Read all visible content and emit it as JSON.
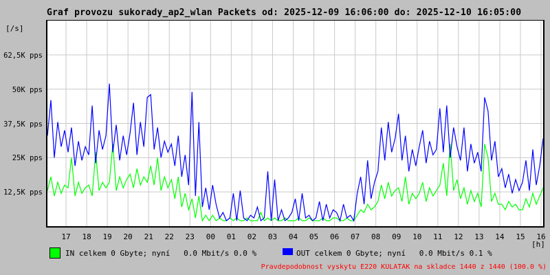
{
  "title": "Graf provozu sukorady_ap2_wlan Packets od: 2025-12-09 16:06:00 do: 2025-12-10 16:05:00",
  "y_axis_unit": "[/s]",
  "x_axis_unit": "[h]",
  "legend": {
    "in_label": "IN celkem 0 Gbyte; nyní   0.0 Mbit/s 0.0 %",
    "out_label": "OUT celkem 0 Gbyte; nyní   0.0 Mbit/s 0.1 %"
  },
  "alert_text": "Pravdepodobnost vyskytu E220 KULATAK na skladce 1440 z 1440 (100.0 %)",
  "colors": {
    "page_background": "#c0c0c0",
    "plot_background": "#ffffff",
    "grid": "#c9c9c9",
    "border": "#000000",
    "in_series": "#00ff00",
    "out_series": "#0000ff",
    "alert": "#ff0000",
    "text": "#000000"
  },
  "chart_data": {
    "type": "line",
    "title": "Graf provozu sukorady_ap2_wlan Packets od: 2025-12-09 16:06:00 do: 2025-12-10 16:05:00",
    "xlabel": "[h]",
    "ylabel": "[/s]",
    "unit": "pps",
    "x_description": "time of day from 16:06 2025-12-09 to 16:05 2025-12-10, one sample per 10 minutes",
    "x_start_offset_hours": 0,
    "x_step_hours": 0.16667,
    "x_total_hours": 24,
    "first_grid_hour_offset": 0.9,
    "x_tick_labels": [
      "17",
      "18",
      "19",
      "20",
      "21",
      "22",
      "23",
      "00",
      "01",
      "02",
      "03",
      "04",
      "05",
      "06",
      "07",
      "08",
      "09",
      "10",
      "11",
      "12",
      "13",
      "14",
      "15",
      "16"
    ],
    "ylim_kpps": [
      0,
      75
    ],
    "y_ticks": [
      {
        "value_kpps": 62.5,
        "label": "62,5K pps"
      },
      {
        "value_kpps": 50,
        "label": "50K pps"
      },
      {
        "value_kpps": 37.5,
        "label": "37,5K pps"
      },
      {
        "value_kpps": 25,
        "label": "25K pps"
      },
      {
        "value_kpps": 12.5,
        "label": "12,5K pps"
      }
    ],
    "grid": true,
    "legend_position": "bottom",
    "series": [
      {
        "name": "IN",
        "color": "#00ff00",
        "values_kpps": [
          13,
          18,
          11,
          16,
          12,
          15,
          14,
          25,
          11,
          16,
          12,
          14,
          15,
          11,
          27,
          13,
          16,
          14,
          16,
          30,
          13,
          18,
          14,
          17,
          19,
          14,
          21,
          15,
          18,
          16,
          22,
          15,
          25,
          13,
          18,
          14,
          17,
          10,
          18,
          7,
          12,
          6,
          10,
          3,
          11,
          2,
          4,
          2,
          4,
          2,
          3,
          2,
          2,
          3,
          2,
          3,
          2,
          2,
          3,
          2,
          2,
          2,
          5,
          2,
          3,
          2,
          3,
          2,
          2,
          3,
          2,
          2,
          2,
          3,
          2,
          2,
          3,
          2,
          2,
          2,
          3,
          2,
          2,
          3,
          3,
          2,
          2,
          3,
          2,
          2,
          4,
          6,
          5,
          8,
          6,
          7,
          9,
          15,
          10,
          16,
          11,
          13,
          14,
          9,
          18,
          8,
          12,
          10,
          12,
          16,
          9,
          14,
          11,
          13,
          15,
          23,
          11,
          30,
          13,
          17,
          10,
          14,
          8,
          13,
          9,
          12,
          7,
          30,
          25,
          9,
          12,
          8,
          8,
          6,
          9,
          7,
          8,
          6,
          6,
          10,
          7,
          12,
          8,
          11,
          14
        ]
      },
      {
        "name": "OUT",
        "color": "#0000ff",
        "values_kpps": [
          33,
          46,
          25,
          38,
          29,
          35,
          27,
          36,
          22,
          31,
          24,
          29,
          26,
          44,
          23,
          35,
          28,
          33,
          52,
          27,
          37,
          24,
          33,
          26,
          34,
          45,
          26,
          38,
          29,
          47,
          48,
          28,
          36,
          25,
          31,
          27,
          30,
          22,
          33,
          18,
          26,
          15,
          49,
          11,
          38,
          7,
          14,
          6,
          15,
          8,
          3,
          5,
          2,
          3,
          12,
          2,
          13,
          3,
          2,
          4,
          3,
          7,
          2,
          3,
          20,
          2,
          17,
          2,
          6,
          2,
          3,
          5,
          10,
          2,
          12,
          3,
          4,
          2,
          3,
          9,
          2,
          8,
          3,
          6,
          5,
          2,
          8,
          3,
          4,
          2,
          12,
          18,
          8,
          24,
          10,
          16,
          20,
          36,
          24,
          38,
          27,
          32,
          41,
          24,
          33,
          20,
          28,
          22,
          29,
          35,
          23,
          31,
          26,
          28,
          43,
          27,
          44,
          25,
          36,
          29,
          24,
          36,
          20,
          30,
          23,
          27,
          20,
          47,
          42,
          24,
          31,
          18,
          21,
          14,
          19,
          12,
          17,
          13,
          16,
          24,
          13,
          28,
          15,
          22,
          32
        ]
      }
    ]
  }
}
